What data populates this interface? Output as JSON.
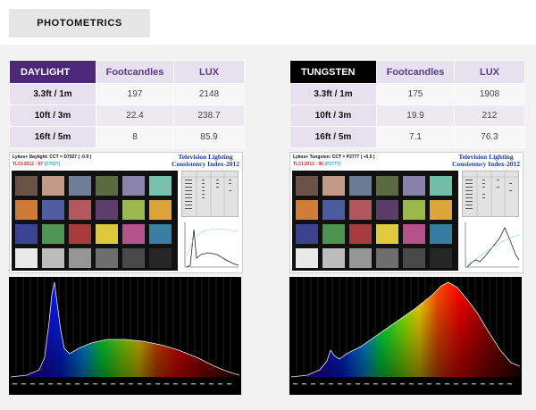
{
  "header": {
    "title": "PHOTOMETRICS"
  },
  "colors": {
    "purple": "#4d2878",
    "lilac": "#e6e0ef",
    "header_text": "#5b3d85"
  },
  "tables": [
    {
      "label": "DAYLIGHT",
      "col1": "Footcandles",
      "col2": "LUX",
      "rows": [
        {
          "distance": "3.3ft / 1m",
          "fc": "197",
          "lux": "2148"
        },
        {
          "distance": "10ft / 3m",
          "fc": "22.4",
          "lux": "238.7"
        },
        {
          "distance": "16ft / 5m",
          "fc": "8",
          "lux": "85.9"
        }
      ]
    },
    {
      "label": "TUNGSTEN",
      "col1": "Footcandles",
      "col2": "LUX",
      "rows": [
        {
          "distance": "3.3ft / 1m",
          "fc": "175",
          "lux": "1908"
        },
        {
          "distance": "10ft / 3m",
          "fc": "19.9",
          "lux": "212"
        },
        {
          "distance": "16ft / 5m",
          "fc": "7.1",
          "lux": "76.3"
        }
      ]
    }
  ],
  "tlci": [
    {
      "caption": "Lykos+ Daylight: CCT = D7027  ( -0.9 )",
      "score_label": "TLCI-2012 : ",
      "score": "97",
      "reference": "(D7027)",
      "title": "Television Lighting Consistency Index-2012"
    },
    {
      "caption": "Lykos+ Tungsten: CCT = P2777  ( +0.5 )",
      "score_label": "TLCI-2012 : ",
      "score": "95",
      "reference": "(P2777)",
      "title": "Television Lighting Consistency Index-2012"
    }
  ],
  "swatch_colors": [
    "#6b5244",
    "#c39a86",
    "#6f7e99",
    "#5c6b3f",
    "#8a84ad",
    "#77c1ac",
    "#cf7b35",
    "#4f5ea2",
    "#b5575f",
    "#5c3d6b",
    "#9cb94d",
    "#dba43a",
    "#3b4394",
    "#4f9652",
    "#a83c3c",
    "#e0c83c",
    "#b4548c",
    "#3a7fa3",
    "#e9e9e9",
    "#bcbcbc",
    "#969696",
    "#6e6e6e",
    "#494949",
    "#262626"
  ],
  "swatch_colors_tungsten": [
    "#6b5244",
    "#c39a86",
    "#6b7b95",
    "#5c6b3f",
    "#8882aa",
    "#72bda8",
    "#d07d38",
    "#4d5c9e",
    "#b3565e",
    "#5a3c69",
    "#9bb84c",
    "#dba63c",
    "#3a4291",
    "#4e9451",
    "#a73c3c",
    "#e1ca3e",
    "#b2528a",
    "#377ca0",
    "#e9e9e9",
    "#bcbcbc",
    "#969696",
    "#6e6e6e",
    "#494949",
    "#262626"
  ]
}
